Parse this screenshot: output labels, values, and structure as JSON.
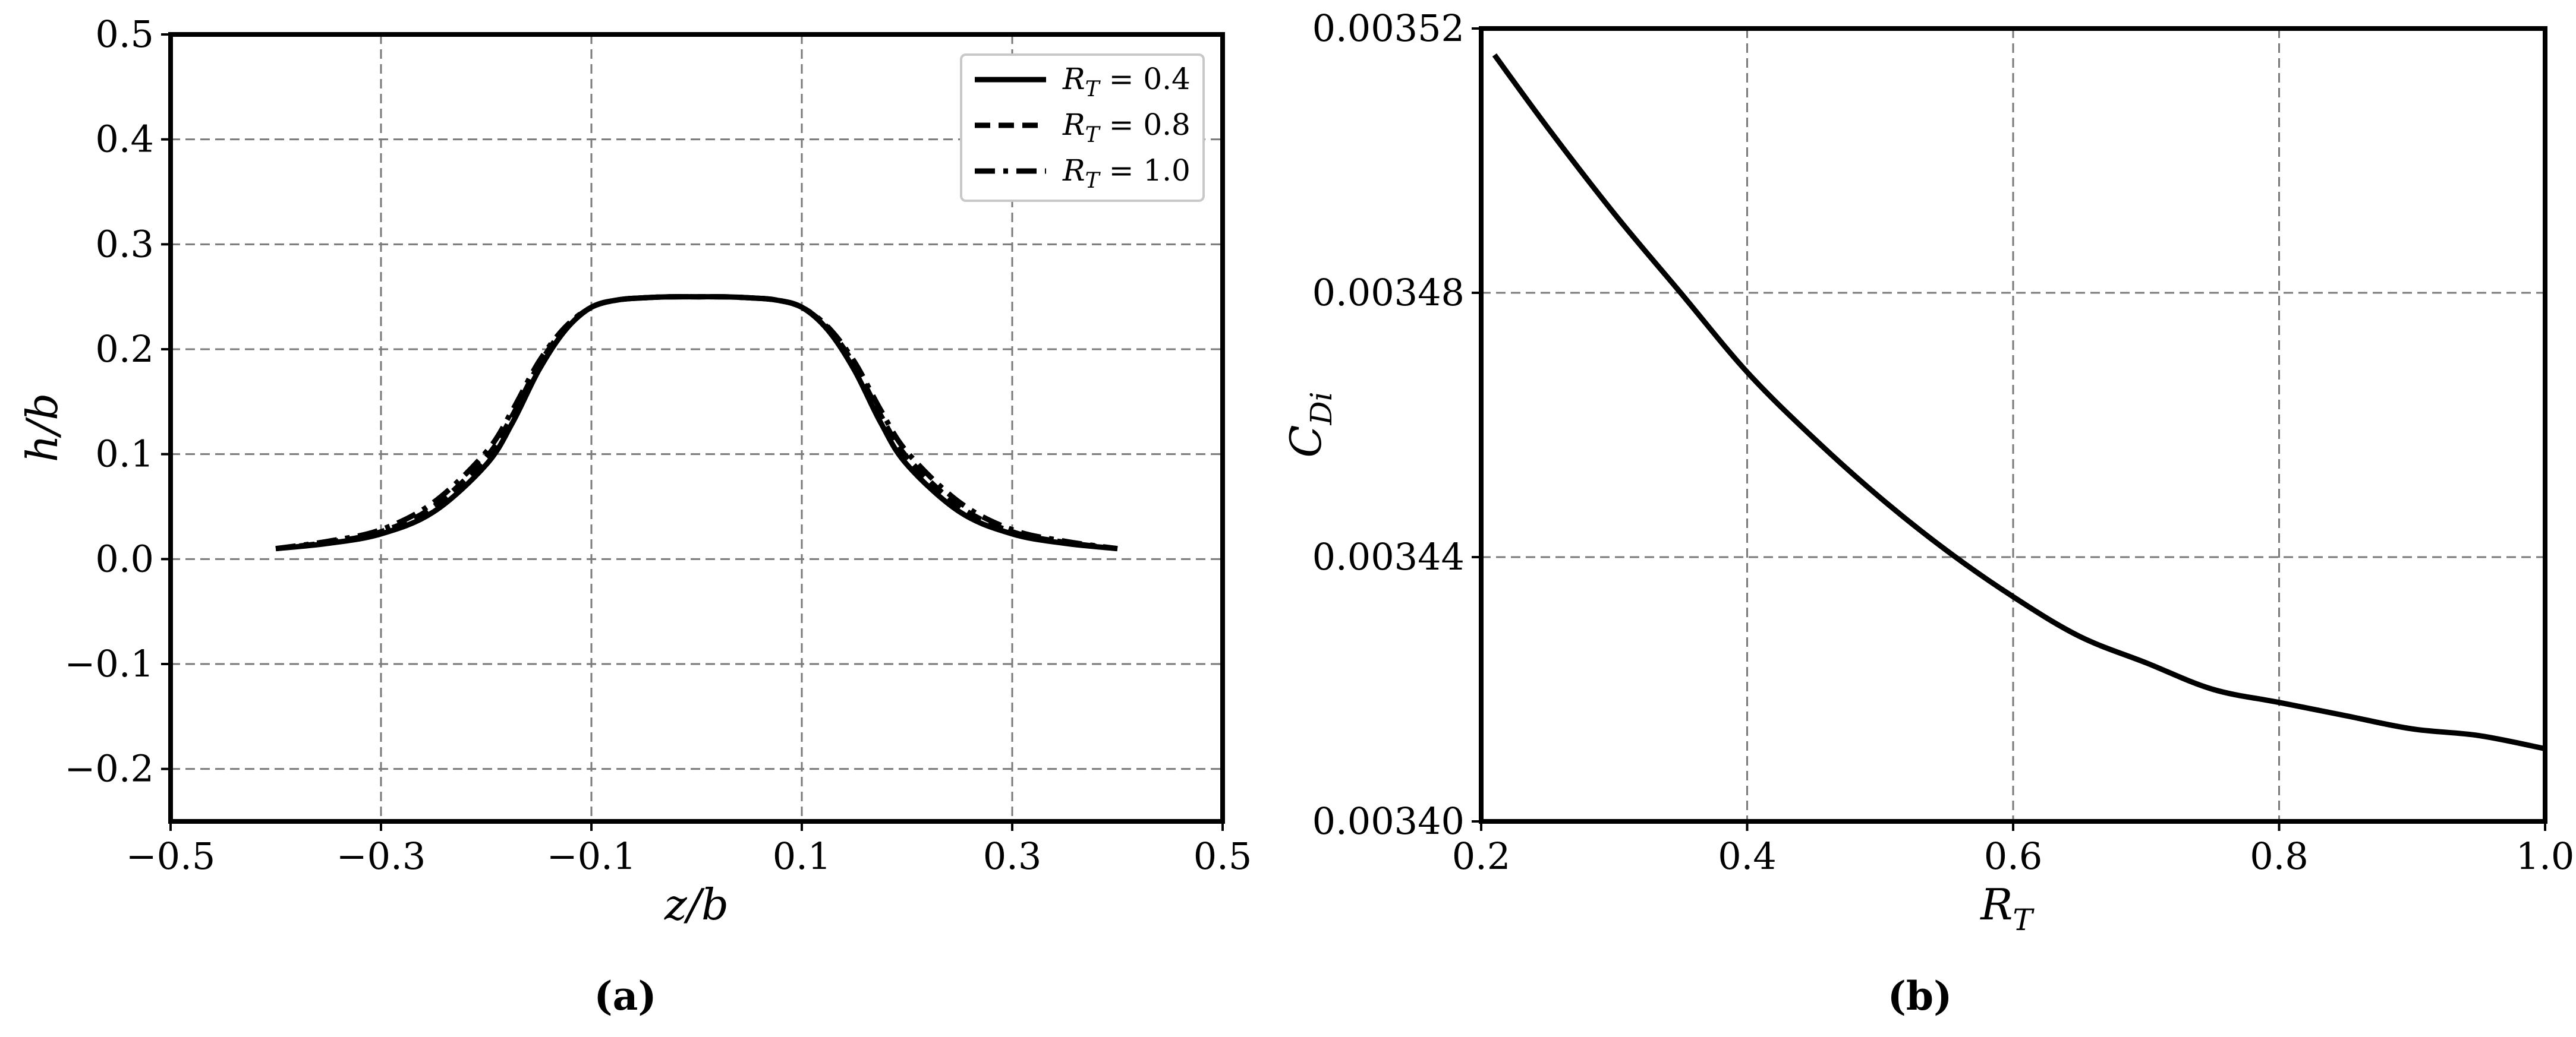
{
  "chart_data": [
    {
      "type": "line",
      "panel": "(a)",
      "xlabel": "z/b",
      "ylabel": "h/b",
      "xlim": [
        -0.5,
        0.5
      ],
      "ylim": [
        -0.25,
        0.5
      ],
      "x_ticks": [
        -0.5,
        -0.3,
        -0.1,
        0.1,
        0.3,
        0.5
      ],
      "x_tick_labels": [
        "−0.5",
        "−0.3",
        "−0.1",
        "0.1",
        "0.3",
        "0.5"
      ],
      "y_ticks": [
        -0.2,
        -0.1,
        0.0,
        0.1,
        0.2,
        0.3,
        0.4,
        0.5
      ],
      "y_tick_labels": [
        "−0.2",
        "−0.1",
        "0.0",
        "0.1",
        "0.2",
        "0.3",
        "0.4",
        "0.5"
      ],
      "grid": true,
      "legend_position": "top-right",
      "series": [
        {
          "name": "R_T = 0.4",
          "dash": "solid",
          "x": [
            -0.4,
            -0.35,
            -0.3,
            -0.25,
            -0.2,
            -0.175,
            -0.15,
            -0.125,
            -0.1,
            -0.075,
            -0.05,
            -0.025,
            0.0,
            0.025,
            0.05,
            0.075,
            0.1,
            0.125,
            0.15,
            0.175,
            0.2,
            0.25,
            0.3,
            0.35,
            0.4
          ],
          "y": [
            0.01,
            0.015,
            0.024,
            0.045,
            0.09,
            0.13,
            0.18,
            0.218,
            0.24,
            0.247,
            0.249,
            0.25,
            0.25,
            0.25,
            0.249,
            0.247,
            0.24,
            0.218,
            0.18,
            0.13,
            0.09,
            0.045,
            0.024,
            0.015,
            0.01
          ]
        },
        {
          "name": "R_T = 0.8",
          "dash": "dashed",
          "x": [
            -0.4,
            -0.35,
            -0.3,
            -0.25,
            -0.2,
            -0.175,
            -0.15,
            -0.125,
            -0.1,
            -0.075,
            -0.05,
            -0.025,
            0.0,
            0.025,
            0.05,
            0.075,
            0.1,
            0.125,
            0.15,
            0.175,
            0.2,
            0.25,
            0.3,
            0.35,
            0.4
          ],
          "y": [
            0.01,
            0.016,
            0.026,
            0.05,
            0.097,
            0.137,
            0.185,
            0.22,
            0.24,
            0.247,
            0.249,
            0.25,
            0.25,
            0.25,
            0.249,
            0.247,
            0.24,
            0.22,
            0.185,
            0.137,
            0.097,
            0.05,
            0.026,
            0.016,
            0.01
          ]
        },
        {
          "name": "R_T = 1.0",
          "dash": "dash-dot",
          "x": [
            -0.4,
            -0.35,
            -0.3,
            -0.25,
            -0.2,
            -0.175,
            -0.15,
            -0.125,
            -0.1,
            -0.075,
            -0.05,
            -0.025,
            0.0,
            0.025,
            0.05,
            0.075,
            0.1,
            0.125,
            0.15,
            0.175,
            0.2,
            0.25,
            0.3,
            0.35,
            0.4
          ],
          "y": [
            0.01,
            0.017,
            0.028,
            0.054,
            0.102,
            0.142,
            0.188,
            0.221,
            0.24,
            0.247,
            0.249,
            0.25,
            0.25,
            0.25,
            0.249,
            0.247,
            0.24,
            0.221,
            0.188,
            0.142,
            0.102,
            0.054,
            0.028,
            0.017,
            0.01
          ]
        }
      ]
    },
    {
      "type": "line",
      "panel": "(b)",
      "xlabel": "R_T",
      "ylabel": "C_Di",
      "xlim": [
        0.2,
        1.0
      ],
      "ylim": [
        0.0034,
        0.00352
      ],
      "x_ticks": [
        0.2,
        0.4,
        0.6,
        0.8,
        1.0
      ],
      "x_tick_labels": [
        "0.2",
        "0.4",
        "0.6",
        "0.8",
        "1.0"
      ],
      "y_ticks": [
        0.0034,
        0.00344,
        0.00348,
        0.00352
      ],
      "y_tick_labels": [
        "0.00340",
        "0.00344",
        "0.00348",
        "0.00352"
      ],
      "grid": true,
      "series": [
        {
          "x": [
            0.21,
            0.25,
            0.3,
            0.35,
            0.4,
            0.45,
            0.5,
            0.55,
            0.6,
            0.65,
            0.7,
            0.75,
            0.8,
            0.85,
            0.9,
            0.95,
            1.0
          ],
          "y": [
            0.003516,
            0.003505,
            0.003492,
            0.00348,
            0.003468,
            0.003458,
            0.003449,
            0.003441,
            0.003434,
            0.003428,
            0.003424,
            0.00342,
            0.003418,
            0.003416,
            0.003414,
            0.003413,
            0.003411
          ]
        }
      ]
    }
  ],
  "captions": {
    "a": "(a)",
    "b": "(b)"
  },
  "legend": {
    "entries": [
      {
        "name_main": "R",
        "name_sub": "T",
        "value": " = 0.4"
      },
      {
        "name_main": "R",
        "name_sub": "T",
        "value": " = 0.8"
      },
      {
        "name_main": "R",
        "name_sub": "T",
        "value": " = 1.0"
      }
    ]
  },
  "labels": {
    "a_x_main": "z/b",
    "a_y_main": "h/b",
    "b_x_main": "R",
    "b_x_sub": "T",
    "b_y_main": "C",
    "b_y_sub": "Di"
  }
}
